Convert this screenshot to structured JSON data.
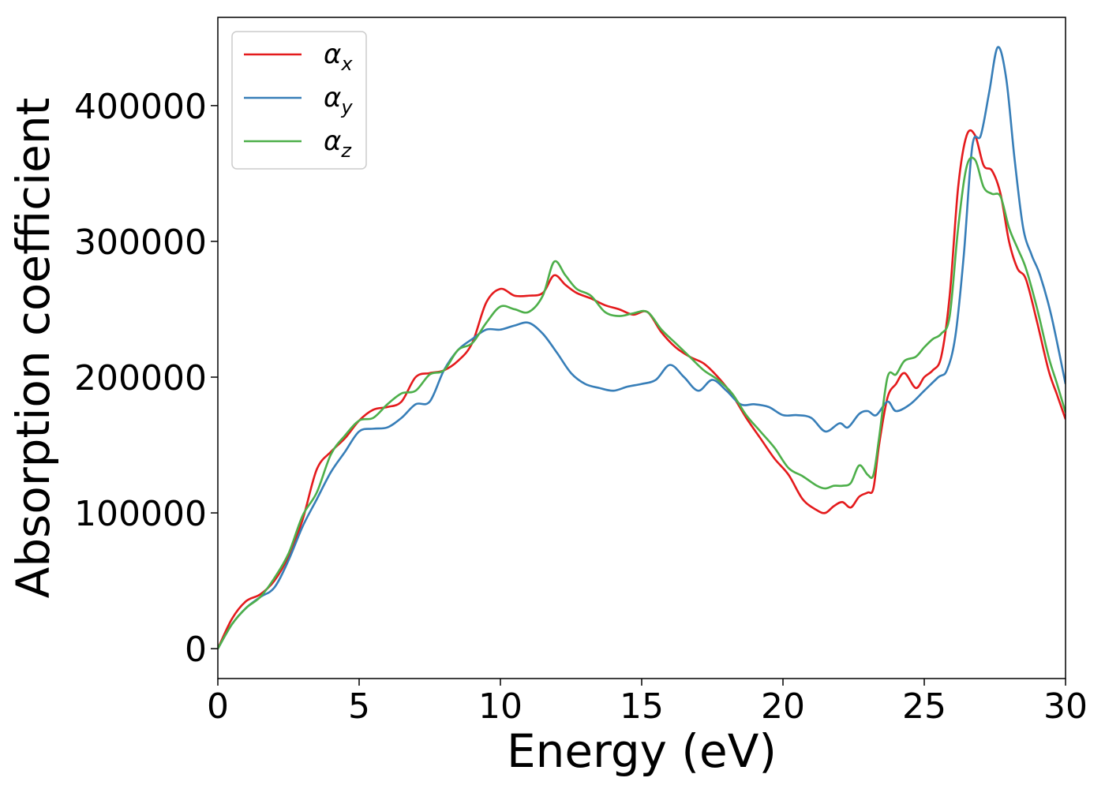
{
  "chart_data": {
    "type": "line",
    "xlabel": "Energy (eV)",
    "ylabel": "Absorption coefficient",
    "xlim": [
      0,
      30
    ],
    "ylim": [
      -22000,
      465000
    ],
    "xticks": [
      0,
      5,
      10,
      15,
      20,
      25,
      30
    ],
    "xtick_labels": [
      "0",
      "5",
      "10",
      "15",
      "20",
      "25",
      "30"
    ],
    "yticks": [
      0,
      100000,
      200000,
      300000,
      400000
    ],
    "ytick_labels": [
      "0",
      "100000",
      "200000",
      "300000",
      "400000"
    ],
    "grid": false,
    "legend_position": "top-left",
    "series": [
      {
        "name": "αx",
        "symbol": "α",
        "subscript": "x",
        "color": "#e41a1c",
        "x": [
          0,
          0.5,
          1,
          1.5,
          2,
          2.5,
          3,
          3.5,
          4,
          4.5,
          5,
          5.5,
          6,
          6.5,
          7,
          7.5,
          8,
          8.5,
          9,
          9.5,
          10,
          10.5,
          11,
          11.5,
          11.9,
          12.3,
          12.7,
          13.2,
          13.7,
          14.2,
          14.7,
          15.2,
          15.7,
          16.2,
          16.7,
          17.2,
          17.7,
          18.2,
          18.7,
          19.2,
          19.7,
          20.2,
          20.7,
          21.2,
          21.5,
          21.8,
          22.1,
          22.4,
          22.7,
          23.0,
          23.2,
          23.4,
          23.7,
          24.0,
          24.3,
          24.7,
          25.0,
          25.3,
          25.6,
          25.9,
          26.2,
          26.5,
          26.8,
          27.1,
          27.4,
          27.7,
          28.0,
          28.3,
          28.6,
          29.0,
          29.4,
          29.7,
          30.0
        ],
        "y": [
          0,
          22000,
          35000,
          40000,
          50000,
          68000,
          95000,
          132000,
          145000,
          155000,
          168000,
          176000,
          178000,
          182000,
          200000,
          203000,
          205000,
          212000,
          225000,
          255000,
          265000,
          260000,
          260000,
          262000,
          275000,
          268000,
          262000,
          258000,
          253000,
          250000,
          246000,
          248000,
          233000,
          222000,
          215000,
          210000,
          200000,
          187000,
          170000,
          155000,
          140000,
          128000,
          110000,
          102000,
          100000,
          105000,
          108000,
          104000,
          112000,
          115000,
          118000,
          150000,
          185000,
          195000,
          203000,
          192000,
          200000,
          205000,
          215000,
          260000,
          340000,
          378000,
          378000,
          356000,
          352000,
          335000,
          300000,
          280000,
          272000,
          240000,
          205000,
          187000,
          169000
        ]
      },
      {
        "name": "αy",
        "symbol": "α",
        "subscript": "y",
        "color": "#377eb8",
        "x": [
          0,
          0.5,
          1,
          1.5,
          2,
          2.5,
          3,
          3.5,
          4,
          4.5,
          5,
          5.5,
          6,
          6.5,
          7,
          7.5,
          8,
          8.5,
          9,
          9.5,
          10,
          10.5,
          11,
          11.5,
          12,
          12.5,
          13,
          13.5,
          14,
          14.5,
          15,
          15.5,
          16,
          16.5,
          17,
          17.5,
          18,
          18.5,
          19,
          19.5,
          20,
          20.5,
          21,
          21.5,
          22,
          22.3,
          22.7,
          23.0,
          23.3,
          23.7,
          24.0,
          24.5,
          25.0,
          25.5,
          25.8,
          26.1,
          26.4,
          26.7,
          27.0,
          27.3,
          27.6,
          27.9,
          28.2,
          28.5,
          28.8,
          29.1,
          29.5,
          30.0
        ],
        "y": [
          0,
          18000,
          30000,
          38000,
          45000,
          65000,
          90000,
          110000,
          130000,
          145000,
          160000,
          162000,
          163000,
          170000,
          180000,
          182000,
          205000,
          220000,
          228000,
          235000,
          235000,
          238000,
          240000,
          232000,
          218000,
          203000,
          195000,
          192000,
          190000,
          193000,
          195000,
          198000,
          209000,
          200000,
          190000,
          198000,
          190000,
          180000,
          180000,
          178000,
          172000,
          172000,
          170000,
          160000,
          166000,
          163000,
          173000,
          175000,
          172000,
          182000,
          175000,
          180000,
          190000,
          200000,
          205000,
          230000,
          290000,
          370000,
          378000,
          410000,
          443000,
          420000,
          360000,
          310000,
          290000,
          275000,
          245000,
          195000
        ]
      },
      {
        "name": "αz",
        "symbol": "α",
        "subscript": "z",
        "color": "#4daf4a",
        "x": [
          0,
          0.5,
          1,
          1.5,
          2,
          2.5,
          3,
          3.5,
          4,
          4.5,
          5,
          5.5,
          6,
          6.5,
          7,
          7.5,
          8,
          8.5,
          9,
          9.5,
          10,
          10.5,
          11,
          11.5,
          11.9,
          12.3,
          12.7,
          13.2,
          13.7,
          14.2,
          14.7,
          15.2,
          15.7,
          16.2,
          16.7,
          17.2,
          17.7,
          18.2,
          18.7,
          19.2,
          19.7,
          20.2,
          20.7,
          21.2,
          21.5,
          21.8,
          22.1,
          22.4,
          22.7,
          23.0,
          23.2,
          23.4,
          23.7,
          24.0,
          24.3,
          24.7,
          25.0,
          25.3,
          25.6,
          25.9,
          26.2,
          26.5,
          26.8,
          27.1,
          27.4,
          27.7,
          28.0,
          28.3,
          28.6,
          29.0,
          29.4,
          29.7,
          30.0
        ],
        "y": [
          0,
          18000,
          30000,
          38000,
          52000,
          70000,
          98000,
          115000,
          143000,
          157000,
          168000,
          170000,
          180000,
          188000,
          190000,
          202000,
          205000,
          220000,
          225000,
          240000,
          252000,
          250000,
          248000,
          260000,
          285000,
          275000,
          265000,
          260000,
          248000,
          245000,
          247000,
          248000,
          235000,
          225000,
          215000,
          205000,
          198000,
          188000,
          172000,
          160000,
          148000,
          133000,
          127000,
          120000,
          118000,
          120000,
          120000,
          122000,
          135000,
          128000,
          128000,
          155000,
          200000,
          202000,
          212000,
          215000,
          222000,
          228000,
          232000,
          245000,
          310000,
          355000,
          360000,
          340000,
          335000,
          333000,
          310000,
          295000,
          280000,
          250000,
          215000,
          195000,
          174000
        ]
      }
    ]
  }
}
